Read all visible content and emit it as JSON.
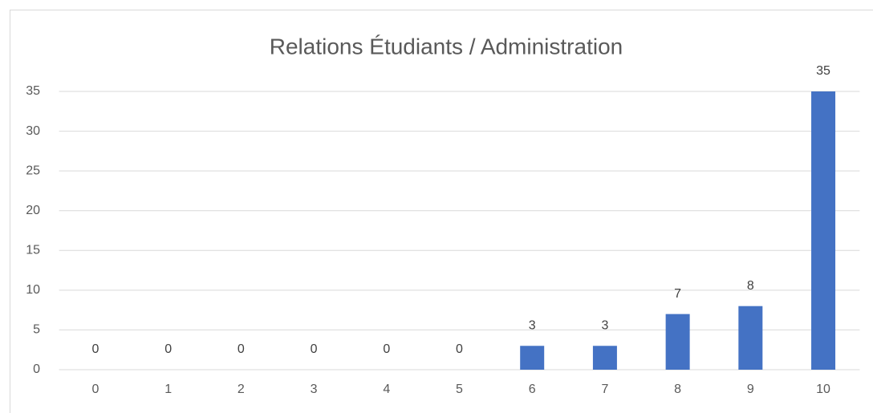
{
  "chart_data": {
    "type": "bar",
    "title": "Relations Étudiants / Administration",
    "categories": [
      "0",
      "1",
      "2",
      "3",
      "4",
      "5",
      "6",
      "7",
      "8",
      "9",
      "10"
    ],
    "values": [
      0,
      0,
      0,
      0,
      0,
      0,
      3,
      3,
      7,
      8,
      35
    ],
    "color": "#4472c4",
    "ylim": [
      0,
      35
    ],
    "yticks": [
      0,
      5,
      10,
      15,
      20,
      25,
      30,
      35
    ],
    "grid": true
  }
}
